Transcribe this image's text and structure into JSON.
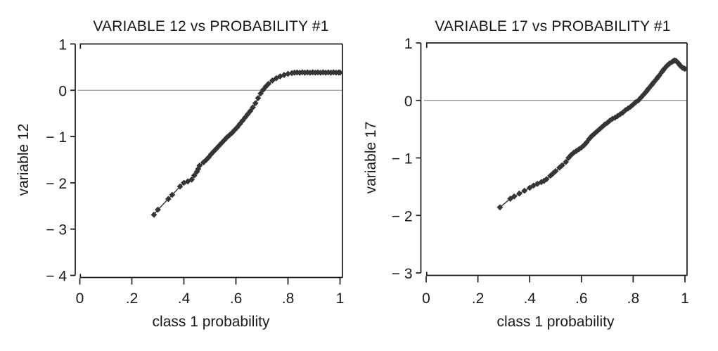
{
  "figure": {
    "background": "#ffffff",
    "text_color": "#1a1a1a"
  },
  "chart_data": [
    {
      "type": "scatter",
      "title": "VARIABLE 12 vs PROBABILITY #1",
      "xlabel": "class 1 probability",
      "ylabel": "variable 12",
      "xlim": [
        0,
        1
      ],
      "ylim": [
        -4,
        1
      ],
      "xticks": [
        0,
        0.2,
        0.4,
        0.6,
        0.8,
        1
      ],
      "xtick_labels": [
        "0",
        ".2",
        ".4",
        ".6",
        ".8",
        "1"
      ],
      "yticks": [
        1,
        0,
        -1,
        -2,
        -3,
        -4
      ],
      "ytick_labels": [
        "1",
        "0",
        "− 1",
        "− 2",
        "− 3",
        "− 4"
      ],
      "grid": false,
      "legend": "none",
      "zero_reference_line": true,
      "marker": "diamond",
      "marker_color": "#343538",
      "line_color": "#343538",
      "axis_color": "#1b1b1b",
      "zero_line_color": "#8c8c8c",
      "points": [
        [
          0.285,
          -2.69
        ],
        [
          0.3,
          -2.58
        ],
        [
          0.34,
          -2.35
        ],
        [
          0.355,
          -2.26
        ],
        [
          0.385,
          -2.08
        ],
        [
          0.4,
          -2.0
        ],
        [
          0.415,
          -1.97
        ],
        [
          0.43,
          -1.93
        ],
        [
          0.44,
          -1.84
        ],
        [
          0.45,
          -1.76
        ],
        [
          0.455,
          -1.7
        ],
        [
          0.46,
          -1.63
        ],
        [
          0.475,
          -1.56
        ],
        [
          0.485,
          -1.51
        ],
        [
          0.495,
          -1.45
        ],
        [
          0.505,
          -1.38
        ],
        [
          0.515,
          -1.32
        ],
        [
          0.525,
          -1.26
        ],
        [
          0.535,
          -1.2
        ],
        [
          0.545,
          -1.14
        ],
        [
          0.555,
          -1.08
        ],
        [
          0.565,
          -1.02
        ],
        [
          0.575,
          -0.97
        ],
        [
          0.585,
          -0.92
        ],
        [
          0.595,
          -0.86
        ],
        [
          0.605,
          -0.8
        ],
        [
          0.615,
          -0.73
        ],
        [
          0.625,
          -0.66
        ],
        [
          0.635,
          -0.59
        ],
        [
          0.645,
          -0.52
        ],
        [
          0.655,
          -0.45
        ],
        [
          0.665,
          -0.37
        ],
        [
          0.675,
          -0.28
        ],
        [
          0.685,
          -0.17
        ],
        [
          0.695,
          -0.07
        ],
        [
          0.705,
          0.01
        ],
        [
          0.715,
          0.08
        ],
        [
          0.725,
          0.14
        ],
        [
          0.74,
          0.21
        ],
        [
          0.755,
          0.26
        ],
        [
          0.77,
          0.3
        ],
        [
          0.785,
          0.33
        ],
        [
          0.8,
          0.355
        ],
        [
          0.815,
          0.37
        ],
        [
          0.825,
          0.38
        ],
        [
          0.835,
          0.385
        ],
        [
          0.845,
          0.378
        ],
        [
          0.855,
          0.388
        ],
        [
          0.865,
          0.38
        ],
        [
          0.875,
          0.386
        ],
        [
          0.885,
          0.379
        ],
        [
          0.895,
          0.387
        ],
        [
          0.905,
          0.381
        ],
        [
          0.915,
          0.386
        ],
        [
          0.925,
          0.379
        ],
        [
          0.935,
          0.387
        ],
        [
          0.945,
          0.38
        ],
        [
          0.955,
          0.386
        ],
        [
          0.965,
          0.38
        ],
        [
          0.975,
          0.387
        ],
        [
          0.985,
          0.381
        ],
        [
          0.995,
          0.385
        ],
        [
          1.0,
          0.382
        ]
      ]
    },
    {
      "type": "scatter",
      "title": "VARIABLE 17 vs PROBABILITY #1",
      "xlabel": "class 1 probability",
      "ylabel": "variable 17",
      "xlim": [
        0,
        1
      ],
      "ylim": [
        -3,
        1
      ],
      "xticks": [
        0,
        0.2,
        0.4,
        0.6,
        0.8,
        1
      ],
      "xtick_labels": [
        "0",
        ".2",
        ".4",
        ".6",
        ".8",
        "1"
      ],
      "yticks": [
        1,
        0,
        -1,
        -2,
        -3
      ],
      "ytick_labels": [
        "1",
        "0",
        "− 1",
        "− 2",
        "− 3"
      ],
      "grid": false,
      "legend": "none",
      "zero_reference_line": true,
      "marker": "diamond",
      "marker_color": "#343538",
      "line_color": "#343538",
      "axis_color": "#1b1b1b",
      "zero_line_color": "#8c8c8c",
      "points": [
        [
          0.285,
          -1.86
        ],
        [
          0.325,
          -1.71
        ],
        [
          0.34,
          -1.67
        ],
        [
          0.36,
          -1.62
        ],
        [
          0.38,
          -1.57
        ],
        [
          0.4,
          -1.52
        ],
        [
          0.415,
          -1.48
        ],
        [
          0.43,
          -1.45
        ],
        [
          0.445,
          -1.42
        ],
        [
          0.455,
          -1.4
        ],
        [
          0.465,
          -1.37
        ],
        [
          0.48,
          -1.31
        ],
        [
          0.49,
          -1.27
        ],
        [
          0.5,
          -1.23
        ],
        [
          0.515,
          -1.17
        ],
        [
          0.525,
          -1.13
        ],
        [
          0.54,
          -1.07
        ],
        [
          0.55,
          -1.0
        ],
        [
          0.56,
          -0.95
        ],
        [
          0.57,
          -0.91
        ],
        [
          0.58,
          -0.88
        ],
        [
          0.59,
          -0.85
        ],
        [
          0.6,
          -0.82
        ],
        [
          0.61,
          -0.78
        ],
        [
          0.62,
          -0.73
        ],
        [
          0.63,
          -0.67
        ],
        [
          0.64,
          -0.62
        ],
        [
          0.65,
          -0.58
        ],
        [
          0.66,
          -0.54
        ],
        [
          0.67,
          -0.5
        ],
        [
          0.68,
          -0.46
        ],
        [
          0.69,
          -0.42
        ],
        [
          0.7,
          -0.39
        ],
        [
          0.71,
          -0.35
        ],
        [
          0.72,
          -0.32
        ],
        [
          0.73,
          -0.3
        ],
        [
          0.74,
          -0.27
        ],
        [
          0.75,
          -0.24
        ],
        [
          0.76,
          -0.21
        ],
        [
          0.77,
          -0.17
        ],
        [
          0.78,
          -0.14
        ],
        [
          0.79,
          -0.11
        ],
        [
          0.8,
          -0.07
        ],
        [
          0.81,
          -0.03
        ],
        [
          0.82,
          0.0
        ],
        [
          0.83,
          0.05
        ],
        [
          0.84,
          0.1
        ],
        [
          0.85,
          0.15
        ],
        [
          0.855,
          0.18
        ],
        [
          0.86,
          0.21
        ],
        [
          0.87,
          0.26
        ],
        [
          0.875,
          0.29
        ],
        [
          0.88,
          0.32
        ],
        [
          0.89,
          0.37
        ],
        [
          0.895,
          0.4
        ],
        [
          0.9,
          0.43
        ],
        [
          0.91,
          0.49
        ],
        [
          0.915,
          0.52
        ],
        [
          0.92,
          0.55
        ],
        [
          0.93,
          0.6
        ],
        [
          0.935,
          0.62
        ],
        [
          0.94,
          0.64
        ],
        [
          0.95,
          0.67
        ],
        [
          0.955,
          0.685
        ],
        [
          0.96,
          0.695
        ],
        [
          0.965,
          0.69
        ],
        [
          0.97,
          0.67
        ],
        [
          0.975,
          0.645
        ],
        [
          0.98,
          0.615
        ],
        [
          0.985,
          0.59
        ],
        [
          0.99,
          0.57
        ],
        [
          0.995,
          0.56
        ],
        [
          1.0,
          0.55
        ]
      ]
    }
  ]
}
